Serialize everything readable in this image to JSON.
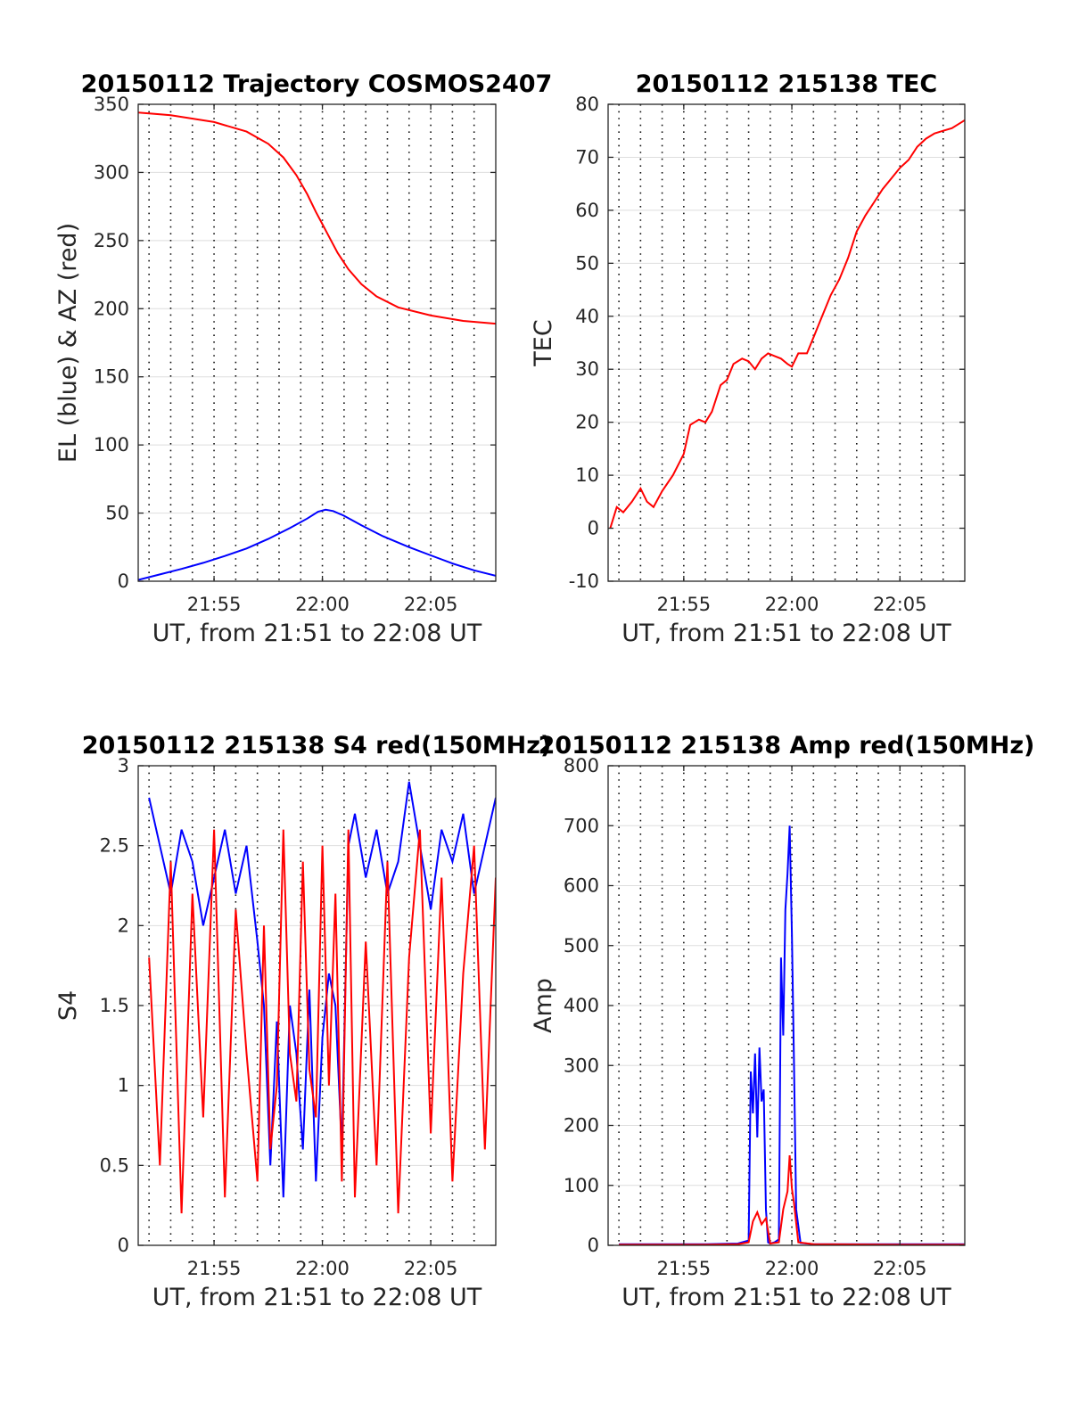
{
  "chart_data": [
    {
      "type": "line",
      "title": "20150112 Trajectory COSMOS2407",
      "xlabel": "UT, from 21:51 to 22:08 UT",
      "ylabel": "EL (blue) & AZ (red)",
      "xlim_minutes": [
        1311.5,
        1328.0
      ],
      "x_tick_labels": [
        "21:55",
        "22:00",
        "22:05"
      ],
      "ylim": [
        0,
        350
      ],
      "yticks": [
        0,
        50,
        100,
        150,
        200,
        250,
        300,
        350
      ],
      "grid": "on",
      "series": [
        {
          "color": "#ff0000",
          "x_minutes": [
            1311.5,
            1313,
            1315,
            1316.5,
            1317.5,
            1318.2,
            1318.8,
            1319.3,
            1319.7,
            1320.0,
            1320.3,
            1320.7,
            1321.2,
            1321.8,
            1322.5,
            1323.5,
            1325,
            1326.5,
            1328.0
          ],
          "values": [
            344,
            342,
            337,
            330,
            321,
            311,
            298,
            284,
            271,
            262,
            253,
            241,
            229,
            218,
            209,
            201,
            195,
            191,
            189
          ]
        },
        {
          "color": "#0000ff",
          "x_minutes": [
            1311.5,
            1312.5,
            1313.5,
            1314.5,
            1315.5,
            1316.5,
            1317.5,
            1318.5,
            1319.3,
            1319.8,
            1320.15,
            1320.5,
            1321,
            1321.8,
            1322.8,
            1324,
            1325,
            1326,
            1327,
            1328.0
          ],
          "values": [
            1,
            5,
            9,
            13.5,
            18.5,
            24,
            31,
            39,
            46,
            51,
            52.5,
            51.5,
            48,
            41,
            33,
            25,
            19,
            13,
            8,
            4
          ]
        }
      ]
    },
    {
      "type": "line",
      "title": "20150112 215138 TEC",
      "xlabel": "UT, from 21:51 to 22:08 UT",
      "ylabel": "TEC",
      "xlim_minutes": [
        1311.5,
        1328.0
      ],
      "x_tick_labels": [
        "21:55",
        "22:00",
        "22:05"
      ],
      "ylim": [
        -10,
        80
      ],
      "yticks": [
        -10,
        0,
        10,
        20,
        30,
        40,
        50,
        60,
        70,
        80
      ],
      "grid": "on",
      "series": [
        {
          "color": "#ff0000",
          "x_minutes": [
            1311.6,
            1311.9,
            1312.2,
            1312.6,
            1313.0,
            1313.3,
            1313.6,
            1314.0,
            1314.5,
            1315.0,
            1315.3,
            1315.7,
            1316.0,
            1316.3,
            1316.7,
            1317.0,
            1317.3,
            1317.7,
            1318.0,
            1318.3,
            1318.6,
            1318.9,
            1319.2,
            1319.5,
            1319.8,
            1320.0,
            1320.3,
            1320.7,
            1321.0,
            1321.4,
            1321.8,
            1322.2,
            1322.6,
            1323.0,
            1323.4,
            1323.8,
            1324.2,
            1324.6,
            1325.0,
            1325.4,
            1325.8,
            1326.2,
            1326.6,
            1327.0,
            1327.4,
            1327.8,
            1328.0
          ],
          "values": [
            0,
            4,
            3,
            5,
            7.5,
            5,
            4,
            7,
            10,
            14,
            19.5,
            20.5,
            20,
            22,
            27,
            28,
            31,
            32,
            31.5,
            30,
            32,
            33,
            32.5,
            32,
            31,
            30.5,
            33,
            33,
            36,
            40,
            44,
            47,
            51,
            56,
            59,
            61.5,
            64,
            66,
            68,
            69.5,
            72,
            73.5,
            74.5,
            75,
            75.5,
            76.5,
            77
          ]
        }
      ]
    },
    {
      "type": "line",
      "title": "20150112 215138 S4 red(150MHz)",
      "xlabel": "UT, from 21:51 to 22:08 UT",
      "ylabel": "S4",
      "xlim_minutes": [
        1311.5,
        1328.0
      ],
      "x_tick_labels": [
        "21:55",
        "22:00",
        "22:05"
      ],
      "ylim": [
        0,
        3
      ],
      "yticks": [
        0,
        0.5,
        1,
        1.5,
        2,
        2.5,
        3
      ],
      "grid": "on",
      "series": [
        {
          "color": "#0000ff",
          "x_minutes": [
            1312.0,
            1312.5,
            1313.0,
            1313.5,
            1314.0,
            1314.5,
            1315.0,
            1315.5,
            1316.0,
            1316.5,
            1317.0,
            1317.3,
            1317.6,
            1317.9,
            1318.2,
            1318.5,
            1318.8,
            1319.1,
            1319.4,
            1319.7,
            1320.0,
            1320.3,
            1320.6,
            1320.9,
            1321.2,
            1321.5,
            1322.0,
            1322.5,
            1323.0,
            1323.5,
            1324.0,
            1324.5,
            1325.0,
            1325.5,
            1326.0,
            1326.5,
            1327.0,
            1327.5,
            1328.0
          ],
          "values": [
            2.8,
            2.5,
            2.2,
            2.6,
            2.4,
            2.0,
            2.3,
            2.6,
            2.2,
            2.5,
            1.9,
            1.5,
            0.5,
            1.4,
            0.3,
            1.5,
            1.2,
            0.6,
            1.6,
            0.4,
            1.3,
            1.7,
            1.5,
            0.6,
            2.5,
            2.7,
            2.3,
            2.6,
            2.2,
            2.4,
            2.9,
            2.5,
            2.1,
            2.6,
            2.4,
            2.7,
            2.2,
            2.5,
            2.8
          ]
        },
        {
          "color": "#ff0000",
          "x_minutes": [
            1312.0,
            1312.5,
            1313.0,
            1313.5,
            1314.0,
            1314.5,
            1315.0,
            1315.5,
            1316.0,
            1316.5,
            1317.0,
            1317.3,
            1317.6,
            1317.9,
            1318.2,
            1318.5,
            1318.8,
            1319.1,
            1319.4,
            1319.7,
            1320.0,
            1320.3,
            1320.6,
            1320.9,
            1321.2,
            1321.5,
            1322.0,
            1322.5,
            1323.0,
            1323.5,
            1324.0,
            1324.5,
            1325.0,
            1325.5,
            1326.0,
            1326.5,
            1327.0,
            1327.5,
            1328.0
          ],
          "values": [
            1.8,
            0.5,
            2.4,
            0.2,
            2.2,
            0.8,
            2.6,
            0.3,
            2.1,
            1.2,
            0.4,
            2.0,
            0.6,
            1.0,
            2.6,
            1.2,
            0.9,
            2.4,
            1.1,
            0.8,
            2.5,
            1.0,
            2.2,
            0.4,
            2.6,
            0.3,
            1.9,
            0.5,
            2.4,
            0.2,
            1.8,
            2.6,
            0.7,
            2.3,
            0.4,
            1.7,
            2.5,
            0.6,
            2.3
          ]
        }
      ]
    },
    {
      "type": "line",
      "title": "20150112 215138 Amp red(150MHz)",
      "xlabel": "UT, from 21:51 to 22:08 UT",
      "ylabel": "Amp",
      "xlim_minutes": [
        1311.5,
        1328.0
      ],
      "x_tick_labels": [
        "21:55",
        "22:00",
        "22:05"
      ],
      "ylim": [
        0,
        800
      ],
      "yticks": [
        0,
        100,
        200,
        300,
        400,
        500,
        600,
        700,
        800
      ],
      "grid": "on",
      "series": [
        {
          "color": "#0000ff",
          "x_minutes": [
            1312.0,
            1314.0,
            1316.0,
            1317.5,
            1318.0,
            1318.1,
            1318.2,
            1318.3,
            1318.4,
            1318.5,
            1318.6,
            1318.7,
            1318.8,
            1318.9,
            1319.0,
            1319.2,
            1319.4,
            1319.5,
            1319.6,
            1319.7,
            1319.8,
            1319.9,
            1320.0,
            1320.1,
            1320.2,
            1320.4,
            1321.0,
            1323.0,
            1325.0,
            1328.0
          ],
          "values": [
            2,
            2,
            2,
            3,
            8,
            290,
            220,
            320,
            180,
            330,
            240,
            260,
            60,
            5,
            3,
            5,
            10,
            480,
            350,
            560,
            620,
            700,
            520,
            300,
            60,
            4,
            2,
            2,
            2,
            2
          ]
        },
        {
          "color": "#ff0000",
          "x_minutes": [
            1312.0,
            1314.0,
            1316.0,
            1317.5,
            1318.0,
            1318.2,
            1318.4,
            1318.6,
            1318.8,
            1319.0,
            1319.4,
            1319.6,
            1319.8,
            1319.9,
            1320.0,
            1320.1,
            1320.3,
            1321.0,
            1325.0,
            1328.0
          ],
          "values": [
            1,
            1,
            1,
            2,
            5,
            40,
            55,
            35,
            45,
            3,
            5,
            60,
            90,
            150,
            95,
            70,
            5,
            2,
            1,
            1
          ]
        }
      ]
    }
  ]
}
